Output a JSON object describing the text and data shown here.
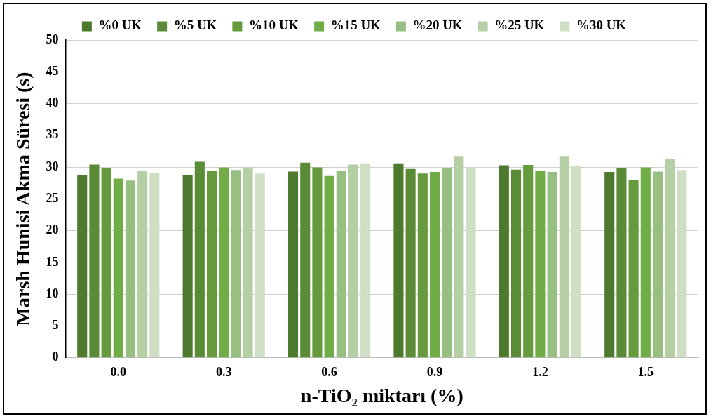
{
  "chart_data": {
    "type": "bar",
    "xlabel": "n-TiO₂ miktarı (%)",
    "ylabel": "Marsh Hunisi Akma Süresi (s)",
    "categories": [
      "0.0",
      "0.3",
      "0.6",
      "0.9",
      "1.2",
      "1.5"
    ],
    "series": [
      {
        "name": "%0 UK",
        "color": "#4e7a2e",
        "values": [
          28.8,
          28.7,
          29.3,
          30.6,
          30.3,
          29.25
        ]
      },
      {
        "name": "%5 UK",
        "color": "#5a8c38",
        "values": [
          30.4,
          30.85,
          30.7,
          29.7,
          29.6,
          29.8
        ]
      },
      {
        "name": "%10 UK",
        "color": "#67993d",
        "values": [
          29.9,
          29.4,
          29.95,
          29.0,
          30.35,
          28.0
        ]
      },
      {
        "name": "%15 UK",
        "color": "#70ad47",
        "values": [
          28.2,
          29.95,
          28.6,
          29.25,
          29.4,
          29.95
        ]
      },
      {
        "name": "%20 UK",
        "color": "#98bf82",
        "values": [
          27.9,
          29.55,
          29.4,
          29.8,
          29.25,
          29.3
        ]
      },
      {
        "name": "%25 UK",
        "color": "#b5cfa5",
        "values": [
          29.4,
          29.95,
          30.4,
          31.75,
          31.75,
          31.3
        ]
      },
      {
        "name": "%30 UK",
        "color": "#cfdfc4",
        "values": [
          29.1,
          29.0,
          30.6,
          30.0,
          30.2,
          29.55
        ]
      }
    ],
    "ylim": [
      0,
      50
    ],
    "yticks": [
      0,
      5,
      10,
      15,
      20,
      25,
      30,
      35,
      40,
      45,
      50
    ],
    "grid": "y",
    "legend": "top"
  }
}
